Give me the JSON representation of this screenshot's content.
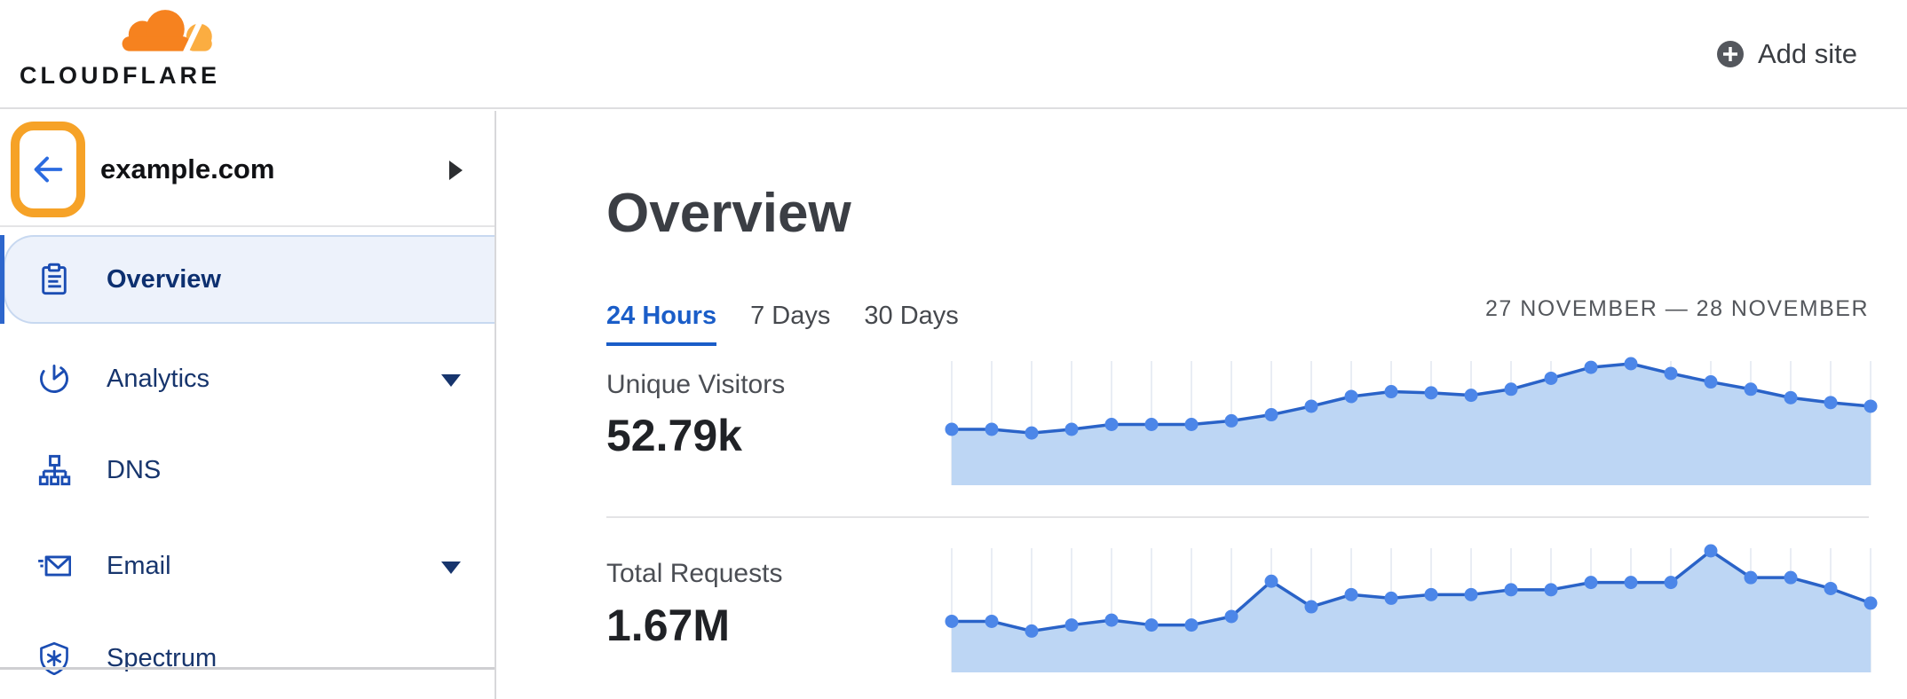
{
  "header": {
    "logo_text": "CLOUDFLARE",
    "add_site_label": "Add site"
  },
  "sidebar": {
    "site_name": "example.com",
    "items": [
      {
        "label": "Overview",
        "icon": "clipboard-icon",
        "active": true,
        "has_caret": false
      },
      {
        "label": "Analytics",
        "icon": "pie-chart-icon",
        "active": false,
        "has_caret": true
      },
      {
        "label": "DNS",
        "icon": "dns-tree-icon",
        "active": false,
        "has_caret": false
      },
      {
        "label": "Email",
        "icon": "email-icon",
        "active": false,
        "has_caret": true
      },
      {
        "label": "Spectrum",
        "icon": "shield-icon",
        "active": false,
        "has_caret": false
      }
    ]
  },
  "main": {
    "title": "Overview",
    "tabs": [
      {
        "label": "24 Hours",
        "active": true
      },
      {
        "label": "7 Days",
        "active": false
      },
      {
        "label": "30 Days",
        "active": false
      }
    ],
    "date_range": "27 NOVEMBER — 28 NOVEMBER",
    "metrics": [
      {
        "label": "Unique Visitors",
        "value": "52.79k"
      },
      {
        "label": "Total Requests",
        "value": "1.67M"
      }
    ]
  },
  "colors": {
    "brand_orange": "#f6821f",
    "brand_orange_light": "#fbad41",
    "annotation_highlight": "#f6a227",
    "link_blue": "#1a5dc8",
    "nav_icon_blue": "#1b4db3",
    "nav_text_navy": "#17356d",
    "active_item_bg": "#edf2fb",
    "active_accent": "#2d66cc"
  },
  "chart_data": [
    {
      "type": "area",
      "title": "Unique Visitors",
      "total_shown": "52.79k",
      "x": {
        "points": 24,
        "range": "24 hours",
        "tick_labels_shown": false
      },
      "y_scale": "relative percent of series max (no y axis labels shown)",
      "values": [
        46,
        46,
        43,
        46,
        50,
        50,
        50,
        53,
        58,
        65,
        73,
        77,
        76,
        74,
        79,
        88,
        97,
        100,
        92,
        85,
        79,
        72,
        68,
        65
      ],
      "grid": "vertical-only",
      "legend": "none",
      "line_color": "#2a63c8",
      "dot_color": "#4c86e8",
      "fill_color": "#bdd6f4",
      "grid_color": "#e9edf4"
    },
    {
      "type": "area",
      "title": "Total Requests",
      "total_shown": "1.67M",
      "x": {
        "points": 24,
        "range": "24 hours",
        "tick_labels_shown": false
      },
      "y_scale": "relative percent of series max (no y axis labels shown)",
      "values": [
        42,
        42,
        34,
        39,
        43,
        39,
        39,
        46,
        75,
        54,
        64,
        61,
        64,
        64,
        68,
        68,
        74,
        74,
        74,
        100,
        78,
        78,
        69,
        57
      ],
      "grid": "vertical-only",
      "legend": "none",
      "line_color": "#2a63c8",
      "dot_color": "#4c86e8",
      "fill_color": "#bdd6f4",
      "grid_color": "#e9edf4"
    }
  ]
}
